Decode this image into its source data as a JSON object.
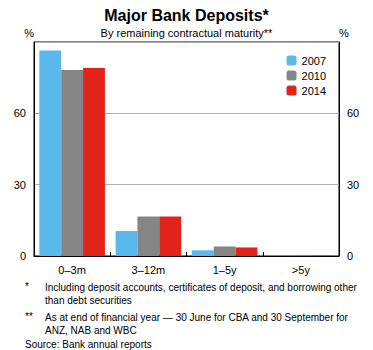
{
  "chart_data": {
    "type": "bar",
    "title": "Major Bank Deposits*",
    "subtitle": "By remaining contractual maturity**",
    "y_label": "%",
    "categories": [
      "0–3m",
      "3–12m",
      "1–5y",
      ">5y"
    ],
    "series": [
      {
        "name": "2007",
        "color": "#5bb8ea",
        "values": [
          86.4,
          10.5,
          2.4,
          0.1
        ]
      },
      {
        "name": "2010",
        "color": "#858585",
        "values": [
          78.2,
          16.6,
          4.0,
          0.1
        ]
      },
      {
        "name": "2014",
        "color": "#e2231a",
        "values": [
          79.1,
          16.6,
          3.6,
          0.1
        ]
      }
    ],
    "ylim": [
      0,
      90
    ],
    "yticks": [
      0,
      30,
      60
    ],
    "grid": true,
    "legend": "top-right",
    "notes": [
      {
        "mark": "*",
        "text": "Including deposit accounts, certificates of deposit, and borrowing other than debt securities"
      },
      {
        "mark": "**",
        "text": "As at end of financial year — 30 June for CBA and 30 September for ANZ, NAB and WBC"
      },
      {
        "mark": "",
        "text": "Source: Bank annual reports"
      }
    ]
  }
}
